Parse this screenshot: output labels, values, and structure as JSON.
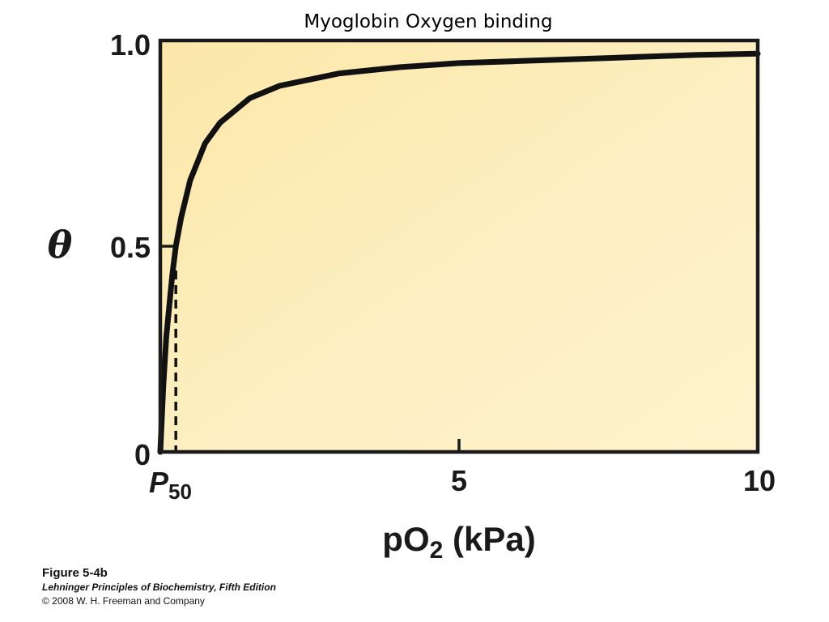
{
  "chart_data": {
    "type": "line",
    "title": "Myoglobin Oxygen binding",
    "xlabel": {
      "main": "pO",
      "sub": "2",
      "unit": " (kPa)"
    },
    "ylabel": "θ",
    "xlim": [
      0,
      10
    ],
    "ylim": [
      0,
      1.0
    ],
    "x_ticks": [
      {
        "value": 5,
        "label": "5"
      },
      {
        "value": 10,
        "label": "10"
      }
    ],
    "y_ticks": [
      {
        "value": 0,
        "label": "0"
      },
      {
        "value": 0.5,
        "label": "0.5"
      },
      {
        "value": 1.0,
        "label": "1.0"
      }
    ],
    "p50_marker": {
      "x": 0.26,
      "y": 0.5,
      "label_main": "P",
      "label_sub": "50"
    },
    "grid": false,
    "series": [
      {
        "x": [
          0,
          0.05,
          0.1,
          0.2,
          0.26,
          0.35,
          0.5,
          0.75,
          1.0,
          1.5,
          2.0,
          3.0,
          4.0,
          5.0,
          6.0,
          7.0,
          8.0,
          9.0,
          10.0
        ],
        "y": [
          0,
          0.16,
          0.28,
          0.43,
          0.5,
          0.57,
          0.66,
          0.75,
          0.8,
          0.86,
          0.89,
          0.92,
          0.935,
          0.945,
          0.95,
          0.955,
          0.96,
          0.965,
          0.968
        ]
      }
    ],
    "colors": {
      "plot_bg": "#fcedb8",
      "curve": "#111111",
      "frame": "#1a1a1a"
    }
  },
  "caption": {
    "figure": "Figure 5-4b",
    "book": "Lehninger Principles of Biochemistry, Fifth Edition",
    "copyright": "© 2008 W. H. Freeman and Company"
  }
}
